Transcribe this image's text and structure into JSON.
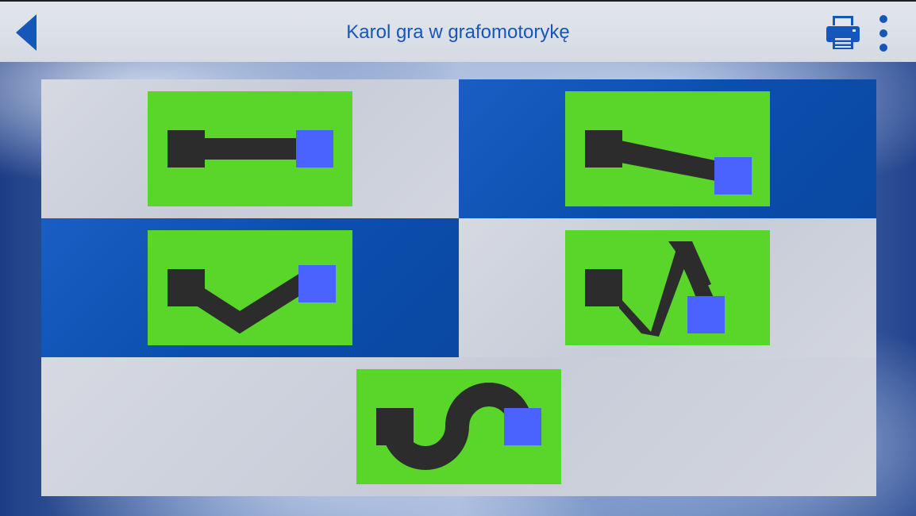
{
  "header": {
    "title": "Karol gra w grafomotorykę"
  },
  "icons": {
    "back": "back-arrow-icon",
    "print": "printer-icon",
    "menu": "more-vertical-icon"
  },
  "colors": {
    "accent": "#1557b8",
    "tile_bg": "#5ad52a",
    "path": "#2c2c2c",
    "target": "#4a63ff",
    "cell_blue": "#0b4fae",
    "cell_light": "#cfd3dc"
  },
  "levels": [
    {
      "id": "straight-line"
    },
    {
      "id": "diagonal-line"
    },
    {
      "id": "v-shape"
    },
    {
      "id": "zigzag"
    },
    {
      "id": "s-curve"
    }
  ]
}
